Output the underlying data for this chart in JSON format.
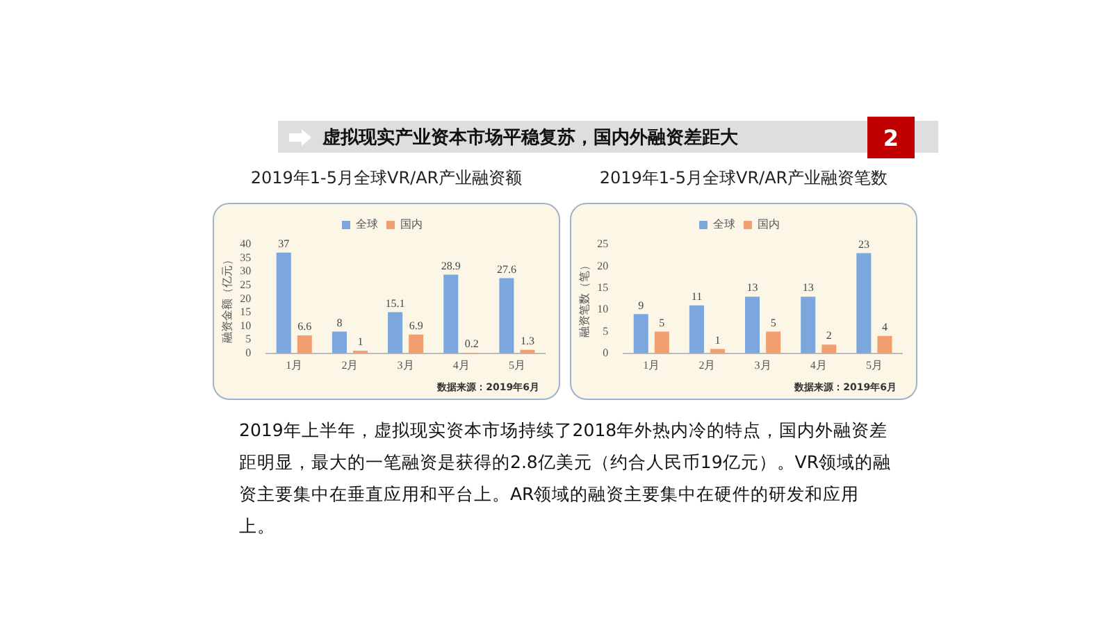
{
  "chart_data": [
    {
      "type": "bar",
      "title": "2019年1-5月全球VR/AR产业融资额",
      "ylabel": "融资金额（亿元）",
      "categories": [
        "1月",
        "2月",
        "3月",
        "4月",
        "5月"
      ],
      "series": [
        {
          "name": "全球",
          "color": "#7ba7dc",
          "values": [
            37,
            8,
            15.1,
            28.9,
            27.6
          ]
        },
        {
          "name": "国内",
          "color": "#f0a070",
          "values": [
            6.6,
            1,
            6.9,
            0.2,
            1.3
          ]
        }
      ],
      "ylim": [
        0,
        40
      ],
      "yticks": [
        0,
        5,
        10,
        15,
        20,
        25,
        30,
        35,
        40
      ],
      "legend": "top",
      "data_labels": true,
      "annotations": [
        "虚拟现实产业资本市场平稳复苏，国内外融资差距大",
        "2",
        "数据来源：2019年6月"
      ]
    },
    {
      "type": "bar",
      "title": "2019年1-5月全球VR/AR产业融资笔数",
      "ylabel": "融资笔数（笔）",
      "categories": [
        "1月",
        "2月",
        "3月",
        "4月",
        "5月"
      ],
      "series": [
        {
          "name": "全球",
          "color": "#7ba7dc",
          "values": [
            9,
            11,
            13,
            13,
            23
          ]
        },
        {
          "name": "国内",
          "color": "#f0a070",
          "values": [
            5,
            1,
            5,
            2,
            4
          ]
        }
      ],
      "ylim": [
        0,
        25
      ],
      "yticks": [
        0,
        5,
        10,
        15,
        20,
        25
      ],
      "legend": "top",
      "data_labels": true,
      "annotations": [
        "数据来源：2019年6月",
        "2019年上半年，虚拟现实资本市场持续了2018年外热内冷的特点，国内外融资差距明显，最大的一笔融资是获得的2.8亿美元（约合人民币19亿元）。VR领域的融资主要集中在垂直应用和平台上。AR领域的融资主要集中在硬件的研发和应用上。"
      ]
    }
  ]
}
